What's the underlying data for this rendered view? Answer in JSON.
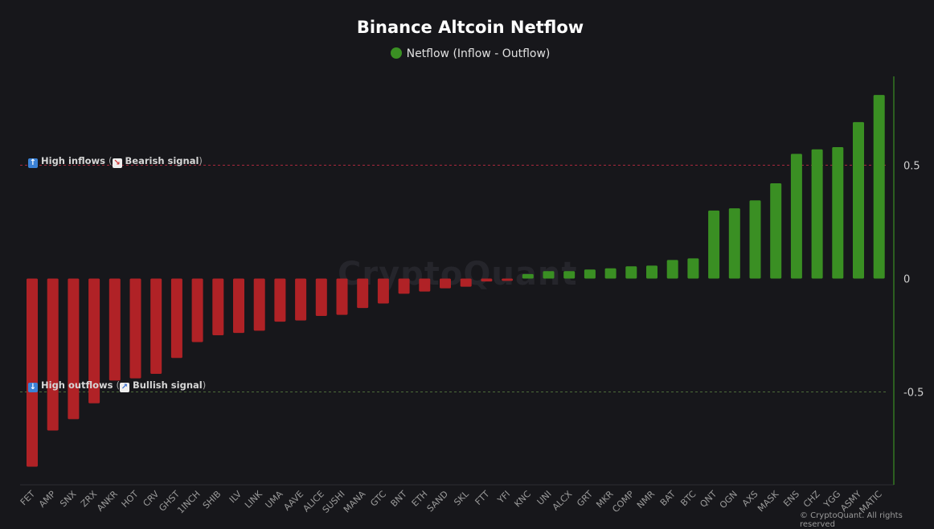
{
  "chart_data": {
    "type": "bar",
    "title": "Binance Altcoin Netflow",
    "legend": [
      {
        "name": "Netflow (Inflow - Outflow)",
        "color": "#3a8f23"
      }
    ],
    "legend_position": "top",
    "categories": [
      "FET",
      "AMP",
      "SNX",
      "ZRX",
      "ANKR",
      "HOT",
      "CRV",
      "GHST",
      "1INCH",
      "SHIB",
      "ILV",
      "LINK",
      "UMA",
      "AAVE",
      "ALICE",
      "SUSHI",
      "MANA",
      "GTC",
      "BNT",
      "ETH",
      "SAND",
      "SKL",
      "FTT",
      "YFI",
      "KNC",
      "UNI",
      "ALCX",
      "GRT",
      "MKR",
      "COMP",
      "NMR",
      "BAT",
      "BTC",
      "QNT",
      "OGN",
      "AXS",
      "MASK",
      "ENS",
      "CHZ",
      "YGG",
      "ASMY",
      "MATIC"
    ],
    "series": [
      {
        "name": "Netflow (Inflow - Outflow)",
        "values": [
          -0.83,
          -0.67,
          -0.62,
          -0.55,
          -0.45,
          -0.44,
          -0.42,
          -0.35,
          -0.28,
          -0.25,
          -0.24,
          -0.23,
          -0.19,
          -0.185,
          -0.165,
          -0.16,
          -0.13,
          -0.11,
          -0.067,
          -0.057,
          -0.043,
          -0.036,
          -0.013,
          -0.01,
          0.02,
          0.033,
          0.033,
          0.04,
          0.045,
          0.054,
          0.057,
          0.082,
          0.089,
          0.3,
          0.31,
          0.345,
          0.42,
          0.55,
          0.57,
          0.58,
          0.69,
          0.81
        ]
      }
    ],
    "positive_color": "#3a8f23",
    "negative_color": "#b02226",
    "y_ticks": [
      "0.5",
      "0",
      "-0.5"
    ],
    "y_tick_values": [
      0.5,
      0,
      -0.5
    ],
    "ylim": [
      -0.9,
      0.9
    ],
    "y_axis_position": "right",
    "grid": false,
    "xlabel": "",
    "ylabel": "",
    "annotations": [
      {
        "value": 0.5,
        "icon": "arrow-up",
        "label": "High inflows",
        "signal_icon": "chart-down",
        "signal": "Bearish signal",
        "color": "#a8283c"
      },
      {
        "value": -0.5,
        "icon": "arrow-down",
        "label": "High outflows",
        "signal_icon": "chart-up",
        "signal": "Bullish signal",
        "color": "#4d6a3a"
      }
    ]
  },
  "watermark": "CryptoQuant",
  "copyright": "© CryptoQuant. All rights reserved"
}
